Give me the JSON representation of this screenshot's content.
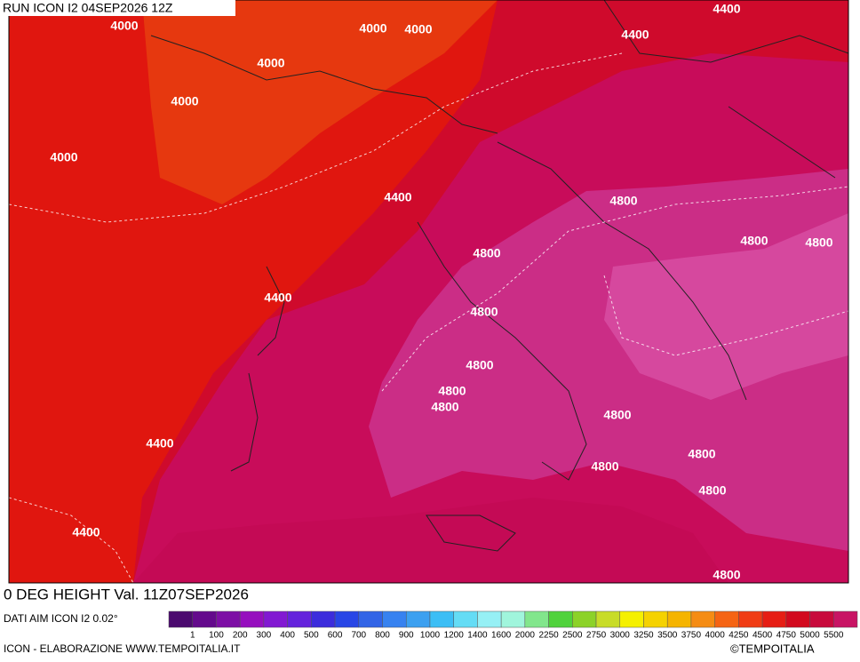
{
  "header": {
    "title": "RUN ICON I2 04SEP2026 12Z"
  },
  "map": {
    "contour_labels": [
      "4400",
      "4000",
      "4000",
      "4000",
      "4400",
      "4000",
      "4000",
      "4000",
      "4400",
      "4800",
      "4800",
      "4800",
      "4800",
      "4400",
      "4800",
      "4800",
      "4800",
      "4800",
      "4800",
      "4400",
      "4800",
      "4800",
      "4800",
      "4400",
      "4800"
    ]
  },
  "footer": {
    "variable": "0 DEG HEIGHT Val. 11Z07SEP2026",
    "source": "DATI AIM ICON I2 0.02°",
    "credit": "ICON - ELABORAZIONE WWW.TEMPOITALIA.IT",
    "brand": "©TEMPOITALIA"
  },
  "legend": {
    "labels": [
      "1",
      "100",
      "200",
      "300",
      "400",
      "500",
      "600",
      "700",
      "800",
      "900",
      "1000",
      "1200",
      "1400",
      "1600",
      "2000",
      "2250",
      "2500",
      "2750",
      "3000",
      "3250",
      "3500",
      "3750",
      "4000",
      "4250",
      "4500",
      "4750",
      "5000",
      "5500"
    ],
    "colors": [
      "#4b0a6e",
      "#640a8c",
      "#7d0fa5",
      "#960fbe",
      "#8219d2",
      "#6423dc",
      "#3c2ddc",
      "#2846e6",
      "#3264e6",
      "#3782f0",
      "#3ca0f0",
      "#3cbef5",
      "#64dcf5",
      "#96f0f5",
      "#a0f5dc",
      "#82e68c",
      "#50d23c",
      "#8cd228",
      "#c8dc28",
      "#f5f000",
      "#f5d200",
      "#f5b400",
      "#f58c14",
      "#f56414",
      "#f03c14",
      "#e61e14",
      "#d20a1e",
      "#c80a3c",
      "#c81464"
    ]
  }
}
